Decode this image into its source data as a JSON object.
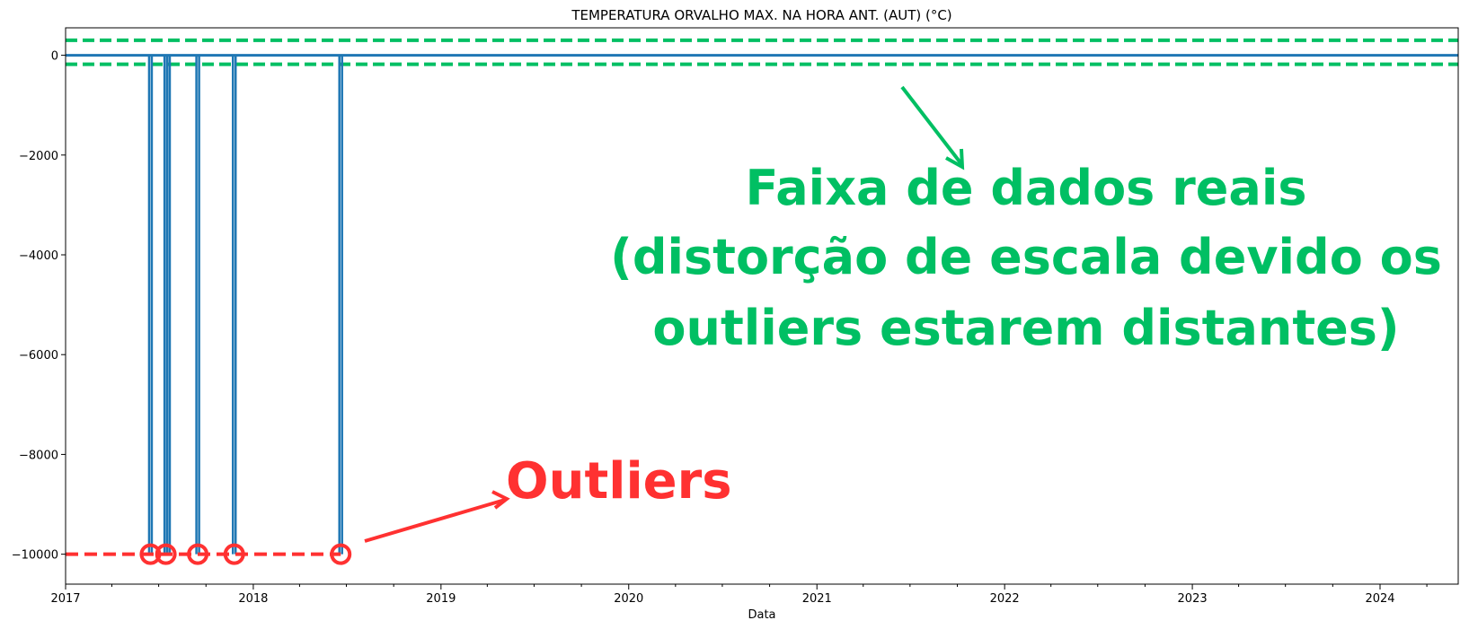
{
  "chart_data": {
    "type": "line",
    "title": "TEMPERATURA ORVALHO MAX. NA HORA ANT. (AUT) (°C)",
    "xlabel": "Data",
    "ylabel": "",
    "xlim": [
      "2017-01-01",
      "2024-06-01"
    ],
    "ylim": [
      -10600,
      550
    ],
    "x_ticks": [
      "2017",
      "2018",
      "2019",
      "2020",
      "2021",
      "2022",
      "2023",
      "2024"
    ],
    "y_ticks": [
      0,
      -2000,
      -4000,
      -6000,
      -8000,
      -10000
    ],
    "y_tick_labels": [
      "0",
      "−2000",
      "−4000",
      "−6000",
      "−8000",
      "−10000"
    ],
    "grid": false,
    "series": [
      {
        "baseline_value": 0,
        "color": "#1f77b4",
        "outliers": [
          {
            "date": "2017-06-15",
            "value": -9999
          },
          {
            "date": "2017-07-15",
            "value": -9999
          },
          {
            "date": "2017-07-20",
            "value": -9999
          },
          {
            "date": "2017-09-15",
            "value": -9999
          },
          {
            "date": "2017-11-25",
            "value": -9999
          },
          {
            "date": "2018-06-20",
            "value": -9999
          }
        ]
      }
    ],
    "annotations": {
      "range_band": {
        "upper": 300,
        "lower": -180,
        "color": "#00bf63"
      },
      "outlier_level": {
        "value": -10000,
        "color": "#ff3131"
      },
      "real_data_text": [
        "Faixa de dados reais",
        "(distorção de escala devido os",
        "outliers estarem distantes)"
      ],
      "outliers_text": "Outliers"
    }
  }
}
